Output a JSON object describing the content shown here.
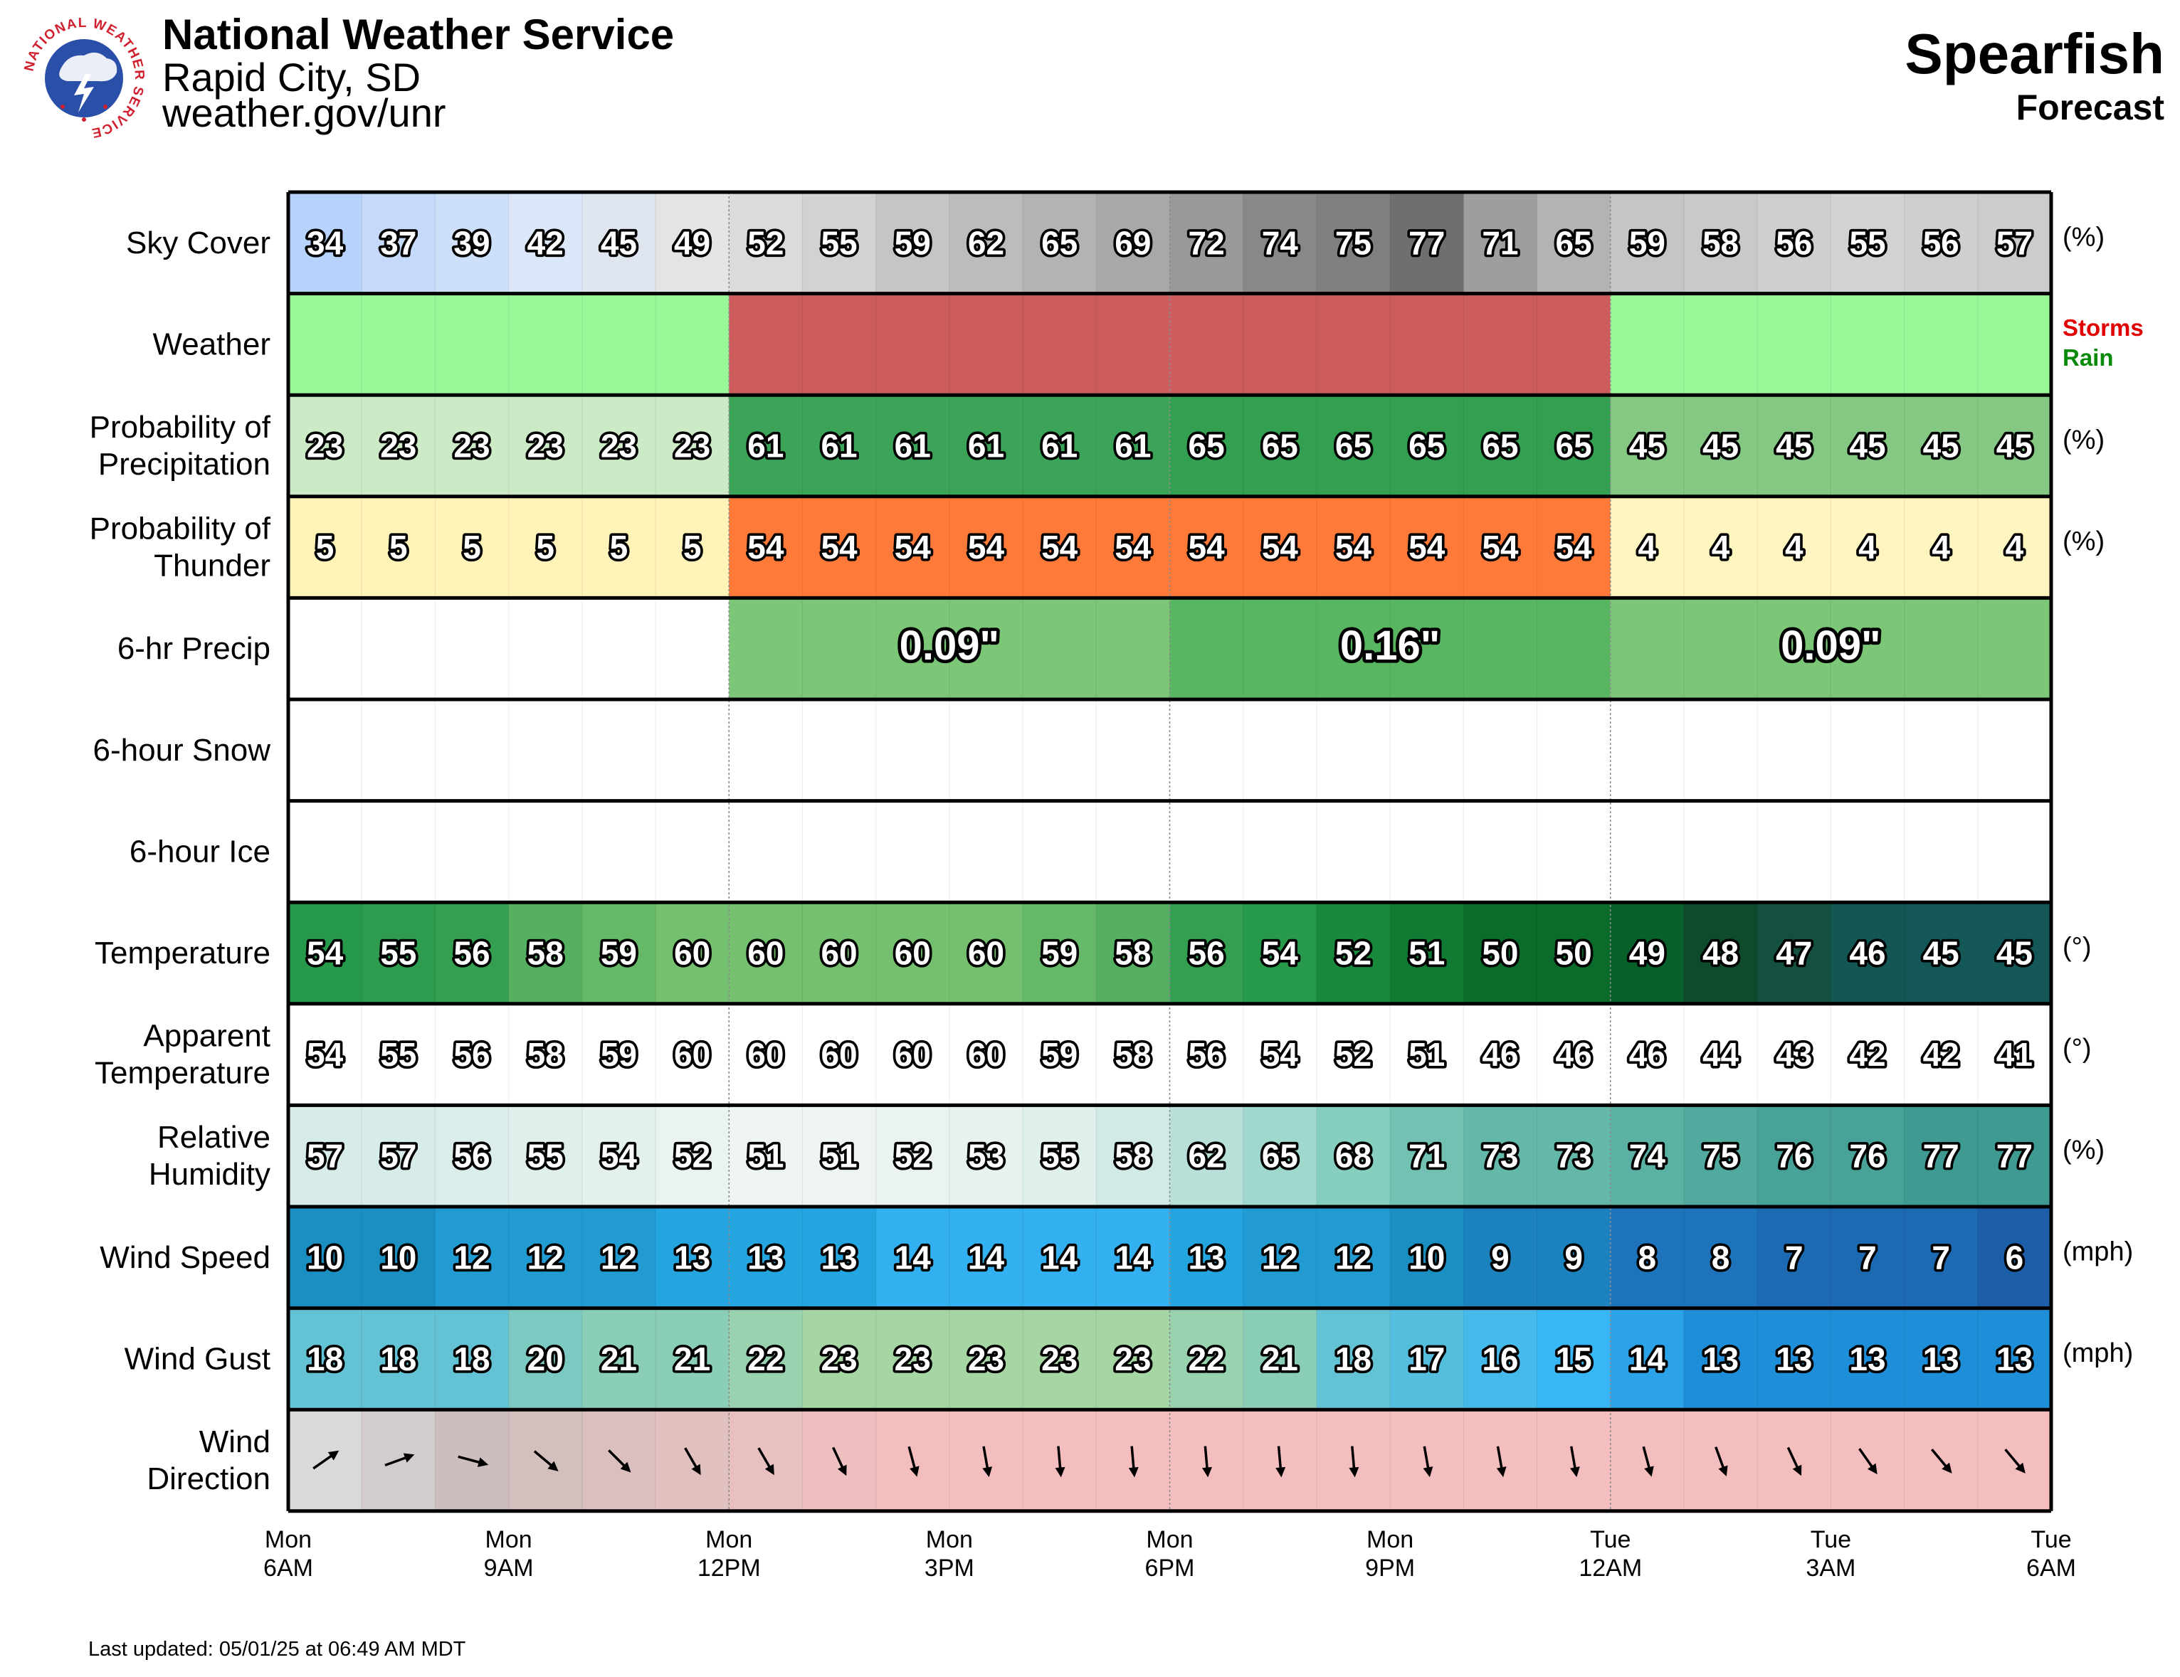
{
  "header": {
    "title": "National Weather Service",
    "office": "Rapid City, SD",
    "url": "weather.gov/unr",
    "logo_text": "NATIONAL WEATHER SERVICE"
  },
  "location": {
    "name": "Spearfish",
    "subtitle": "Forecast"
  },
  "footer": {
    "last_updated": "Last updated: 05/01/25 at 06:49 AM MDT"
  },
  "chart_data": {
    "type": "table",
    "hours_per_column": 1,
    "x_ticks": [
      [
        "Mon",
        "6AM"
      ],
      [
        "Mon",
        "9AM"
      ],
      [
        "Mon",
        "12PM"
      ],
      [
        "Mon",
        "3PM"
      ],
      [
        "Mon",
        "6PM"
      ],
      [
        "Mon",
        "9PM"
      ],
      [
        "Tue",
        "12AM"
      ],
      [
        "Tue",
        "3AM"
      ],
      [
        "Tue",
        "6AM"
      ]
    ],
    "rows": [
      {
        "key": "sky",
        "label": [
          "Sky Cover"
        ],
        "unit": "(%)",
        "values": [
          34,
          37,
          39,
          42,
          45,
          49,
          52,
          55,
          59,
          62,
          65,
          69,
          72,
          74,
          75,
          77,
          71,
          65,
          59,
          58,
          56,
          55,
          56,
          57
        ]
      },
      {
        "key": "weather",
        "label": [
          "Weather"
        ],
        "segments": [
          {
            "start": 0,
            "span": 6,
            "type": "Rain",
            "color": "#98f898"
          },
          {
            "start": 6,
            "span": 12,
            "type": "Storms",
            "color": "#cd5c5c"
          },
          {
            "start": 18,
            "span": 6,
            "type": "Rain",
            "color": "#98f898"
          }
        ],
        "legend": [
          {
            "text": "Storms",
            "color": "#e00000"
          },
          {
            "text": "Rain",
            "color": "#0a8a0a"
          }
        ]
      },
      {
        "key": "pop",
        "label": [
          "Probability of",
          "Precipitation"
        ],
        "unit": "(%)",
        "values": [
          23,
          23,
          23,
          23,
          23,
          23,
          61,
          61,
          61,
          61,
          61,
          61,
          65,
          65,
          65,
          65,
          65,
          65,
          45,
          45,
          45,
          45,
          45,
          45
        ]
      },
      {
        "key": "thunder",
        "label": [
          "Probability of",
          "Thunder"
        ],
        "unit": "(%)",
        "values": [
          5,
          5,
          5,
          5,
          5,
          5,
          54,
          54,
          54,
          54,
          54,
          54,
          54,
          54,
          54,
          54,
          54,
          54,
          4,
          4,
          4,
          4,
          4,
          4
        ]
      },
      {
        "key": "qpf6",
        "label": [
          "6-hr Precip"
        ],
        "blocks": [
          {
            "start": 6,
            "span": 6,
            "text": "0.09\"",
            "value": 0.09
          },
          {
            "start": 12,
            "span": 6,
            "text": "0.16\"",
            "value": 0.16
          },
          {
            "start": 18,
            "span": 6,
            "text": "0.09\"",
            "value": 0.09
          }
        ]
      },
      {
        "key": "snow6",
        "label": [
          "6-hour Snow"
        ],
        "blocks": []
      },
      {
        "key": "ice6",
        "label": [
          "6-hour Ice"
        ],
        "blocks": []
      },
      {
        "key": "temp",
        "label": [
          "Temperature"
        ],
        "unit": "(°)",
        "values": [
          54,
          55,
          56,
          58,
          59,
          60,
          60,
          60,
          60,
          60,
          59,
          58,
          56,
          54,
          52,
          51,
          50,
          50,
          49,
          48,
          47,
          46,
          45,
          45
        ]
      },
      {
        "key": "apparent",
        "label": [
          "Apparent",
          "Temperature"
        ],
        "unit": "(°)",
        "values": [
          54,
          55,
          56,
          58,
          59,
          60,
          60,
          60,
          60,
          60,
          59,
          58,
          56,
          54,
          52,
          51,
          46,
          46,
          46,
          44,
          43,
          42,
          42,
          41
        ]
      },
      {
        "key": "rh",
        "label": [
          "Relative",
          "Humidity"
        ],
        "unit": "(%)",
        "values": [
          57,
          57,
          56,
          55,
          54,
          52,
          51,
          51,
          52,
          53,
          55,
          58,
          62,
          65,
          68,
          71,
          73,
          73,
          74,
          75,
          76,
          76,
          77,
          77
        ]
      },
      {
        "key": "wspd",
        "label": [
          "Wind Speed"
        ],
        "unit": "(mph)",
        "values": [
          10,
          10,
          12,
          12,
          12,
          13,
          13,
          13,
          14,
          14,
          14,
          14,
          13,
          12,
          12,
          10,
          9,
          9,
          8,
          8,
          7,
          7,
          7,
          6
        ]
      },
      {
        "key": "gust",
        "label": [
          "Wind Gust"
        ],
        "unit": "(mph)",
        "values": [
          18,
          18,
          18,
          20,
          21,
          21,
          22,
          23,
          23,
          23,
          23,
          23,
          22,
          21,
          18,
          17,
          16,
          15,
          14,
          13,
          13,
          13,
          13,
          13
        ]
      },
      {
        "key": "wdir",
        "label": [
          "Wind",
          "Direction"
        ],
        "directions_deg": [
          235,
          250,
          285,
          310,
          315,
          330,
          330,
          335,
          345,
          350,
          355,
          355,
          355,
          355,
          355,
          350,
          350,
          350,
          345,
          340,
          335,
          325,
          320,
          320
        ]
      }
    ]
  }
}
